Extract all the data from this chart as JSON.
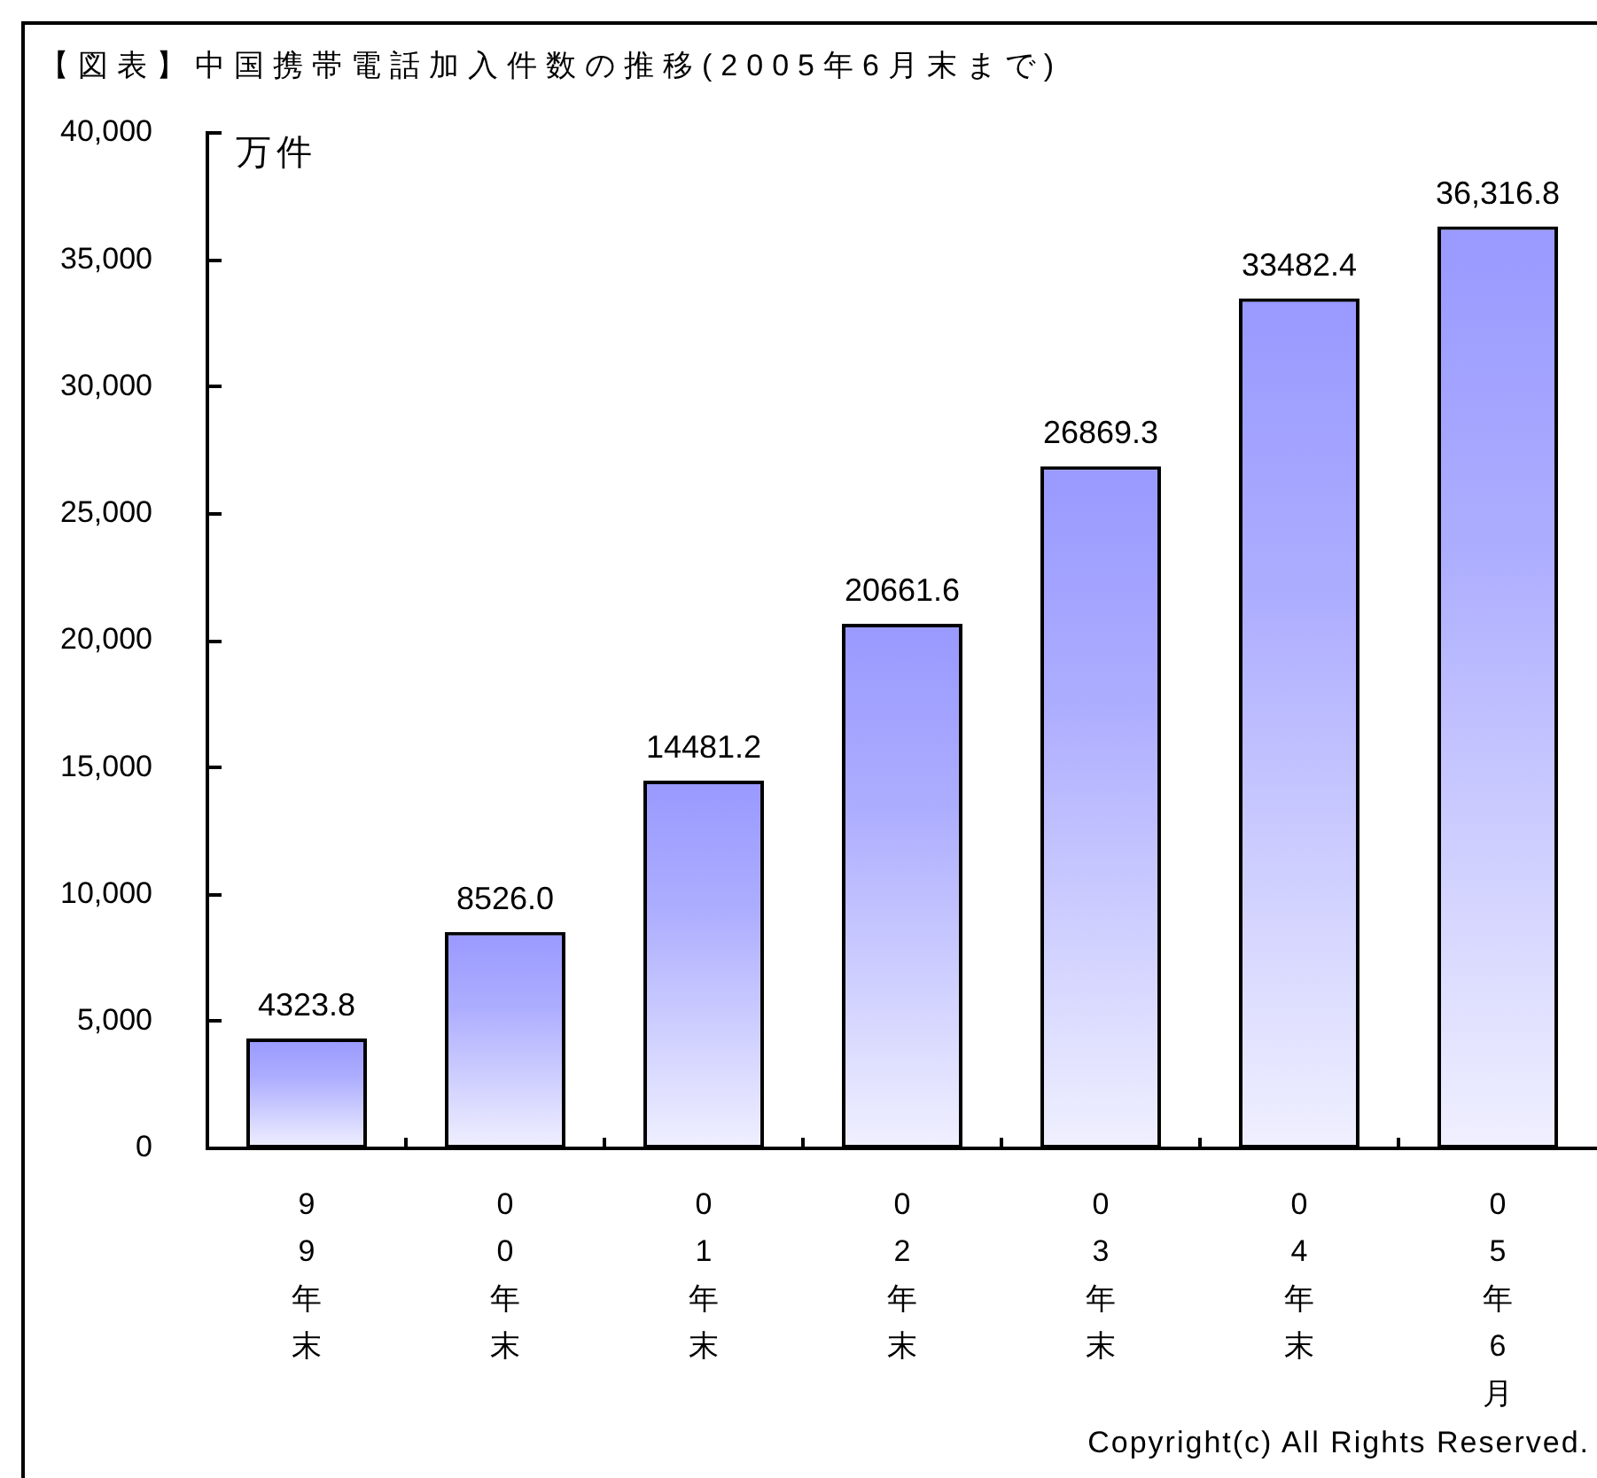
{
  "chart_data": {
    "type": "bar",
    "title": "【図表】中国携帯電話加入件数の推移(2005年6月末まで)",
    "ylabel": "万件",
    "categories": [
      "99年末",
      "00年末",
      "01年末",
      "02年末",
      "03年末",
      "04年末",
      "05年6月"
    ],
    "values": [
      4323.8,
      8526.0,
      14481.2,
      20661.6,
      26869.3,
      33482.4,
      36316.8
    ],
    "value_labels": [
      "4323.8",
      "8526.0",
      "14481.2",
      "20661.6",
      "26869.3",
      "33482.4",
      "36,316.8"
    ],
    "color": "#9999ff",
    "ylim": [
      0,
      40000
    ],
    "yticks": [
      0,
      {
        "value": 5000,
        "label": "5,000"
      },
      {
        "value": 10000,
        "label": "10,000"
      },
      {
        "value": 15000,
        "label": "15,000"
      },
      {
        "value": 20000,
        "label": "20,000"
      },
      {
        "value": 25000,
        "label": "25,000"
      },
      {
        "value": 30000,
        "label": "30,000"
      },
      {
        "value": 35000,
        "label": "35,000"
      },
      {
        "value": 40000,
        "label": "40,000"
      }
    ],
    "grid": false,
    "legend": false,
    "annotations": [
      "Copyright(c) All Rights Reserved."
    ]
  }
}
